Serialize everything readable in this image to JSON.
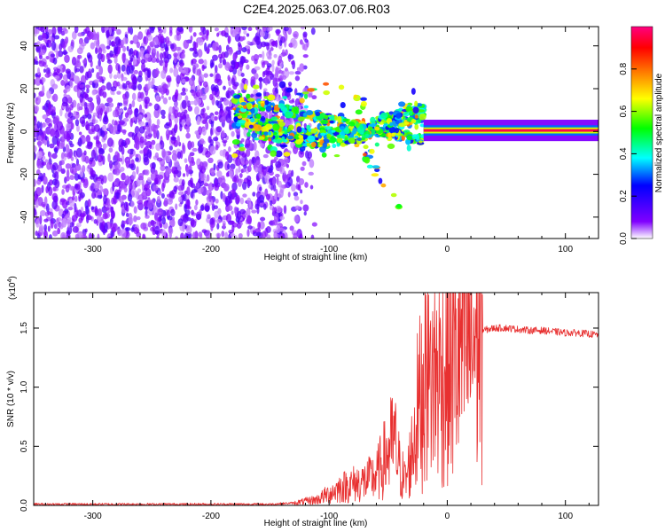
{
  "figure": {
    "title": "C2E4.2025.063.07.06.R03"
  },
  "chart_data": [
    {
      "type": "heatmap",
      "title": "C2E4.2025.063.07.06.R03",
      "xlabel": "Height of straight line (km)",
      "ylabel": "Frequency (Hz)",
      "xlim": [
        -350,
        128
      ],
      "ylim": [
        -50,
        49
      ],
      "xticks": [
        -300,
        -200,
        -100,
        0,
        100
      ],
      "xtick_labels": [
        "-300",
        "-200",
        "-100",
        "0",
        "100"
      ],
      "yticks": [
        -40,
        -20,
        0,
        20,
        40
      ],
      "ytick_labels": [
        "-40",
        "-20",
        "0",
        "20",
        "40"
      ],
      "colorbar": {
        "label": "Normalized spectral amplitude",
        "range": [
          0,
          1
        ],
        "ticks": [
          0,
          0.2,
          0.4,
          0.6,
          0.8
        ],
        "tick_labels": [
          "0.0",
          "0.2",
          "0.4",
          "0.6",
          "0.8"
        ],
        "colormap": [
          "#ffffff",
          "#8000ff",
          "#0000ff",
          "#00ffff",
          "#00ff00",
          "#ffff00",
          "#ff8000",
          "#ff0000",
          "#ff0080"
        ]
      },
      "regions": [
        {
          "description_level": "noise",
          "x_range": [
            -350,
            -140
          ],
          "frequency_range": [
            -50,
            49
          ],
          "amplitude": 0.12
        },
        {
          "description_level": "transition",
          "x_range": [
            -180,
            -20
          ],
          "frequency_range": [
            -38,
            18
          ],
          "amplitude": 0.35
        },
        {
          "description_level": "carrier",
          "x_range": [
            -20,
            128
          ],
          "frequency_center": 0.5,
          "frequency_width": 2,
          "amplitude": 0.95
        }
      ]
    },
    {
      "type": "line",
      "xlabel": "Height of straight line (km)",
      "ylabel": "SNR (10 * v/v)",
      "y_multiplier_label": "(x10",
      "y_multiplier_exp": "4",
      "y_multiplier_close": ")",
      "xlim": [
        -350,
        128
      ],
      "ylim": [
        0,
        1.8
      ],
      "xticks": [
        -300,
        -200,
        -100,
        0,
        100
      ],
      "xtick_labels": [
        "-300",
        "-200",
        "-100",
        "0",
        "100"
      ],
      "yticks": [
        0,
        0.5,
        1.0,
        1.5
      ],
      "ytick_labels": [
        "0.0",
        "0.5",
        "1.0",
        "1.5"
      ],
      "color": "#e83030",
      "series": [
        {
          "x": [
            -350,
            -300,
            -250,
            -200,
            -150,
            -130,
            -110,
            -100,
            -90,
            -80,
            -70,
            -60,
            -55,
            -50,
            -45,
            -40,
            -35,
            -30,
            -25,
            -20,
            -15,
            -10,
            -5,
            0,
            5,
            10,
            20,
            30,
            40,
            50,
            60,
            70,
            80,
            90,
            100,
            110,
            120,
            128
          ],
          "y": [
            0.01,
            0.01,
            0.01,
            0.01,
            0.01,
            0.02,
            0.05,
            0.1,
            0.15,
            0.18,
            0.2,
            0.25,
            0.35,
            0.45,
            0.55,
            0.3,
            0.2,
            0.45,
            0.8,
            1.0,
            1.05,
            1.1,
            1.1,
            1.15,
            1.2,
            1.3,
            1.4,
            1.48,
            1.5,
            1.5,
            1.49,
            1.48,
            1.48,
            1.47,
            1.46,
            1.46,
            1.45,
            1.44
          ]
        }
      ]
    }
  ]
}
